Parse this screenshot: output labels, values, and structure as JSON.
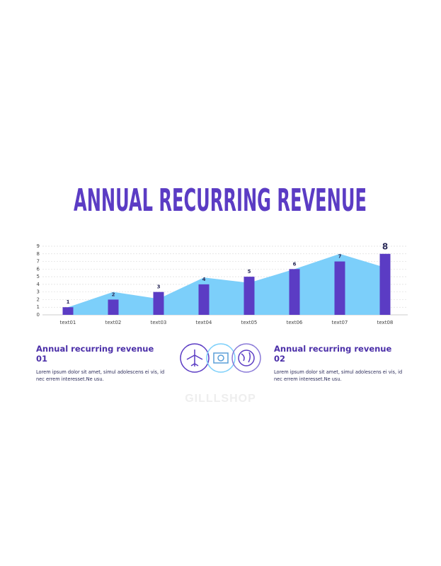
{
  "chart_data": {
    "type": "bar",
    "title": "ANNUAL RECURRING REVENUE",
    "categories": [
      "text01",
      "text02",
      "text03",
      "text04",
      "text05",
      "text06",
      "text07",
      "text08"
    ],
    "series": [
      {
        "type": "area",
        "color": "#7ccffa",
        "values": [
          1,
          3,
          2.1,
          4.9,
          4.2,
          6,
          8,
          6.2
        ]
      },
      {
        "type": "bar",
        "color": "#5b3cc4",
        "values": [
          1,
          2,
          3,
          4,
          5,
          6,
          7,
          8
        ]
      }
    ],
    "ylim": [
      0,
      9
    ],
    "yticks": [
      0,
      1,
      2,
      3,
      4,
      5,
      6,
      7,
      8,
      9
    ],
    "grid": true
  },
  "sections": [
    {
      "heading": "Annual recurring revenue 01",
      "body": "Lorem ipsum dolor sit amet, simul adolescens ei vis, id nec errem interesset.Ne usu."
    },
    {
      "heading": "Annual recurring revenue 02",
      "body": "Lorem ipsum dolor sit amet, simul adolescens ei vis, id nec errem interesset.Ne usu."
    }
  ],
  "watermark": "GILLLSHOP"
}
